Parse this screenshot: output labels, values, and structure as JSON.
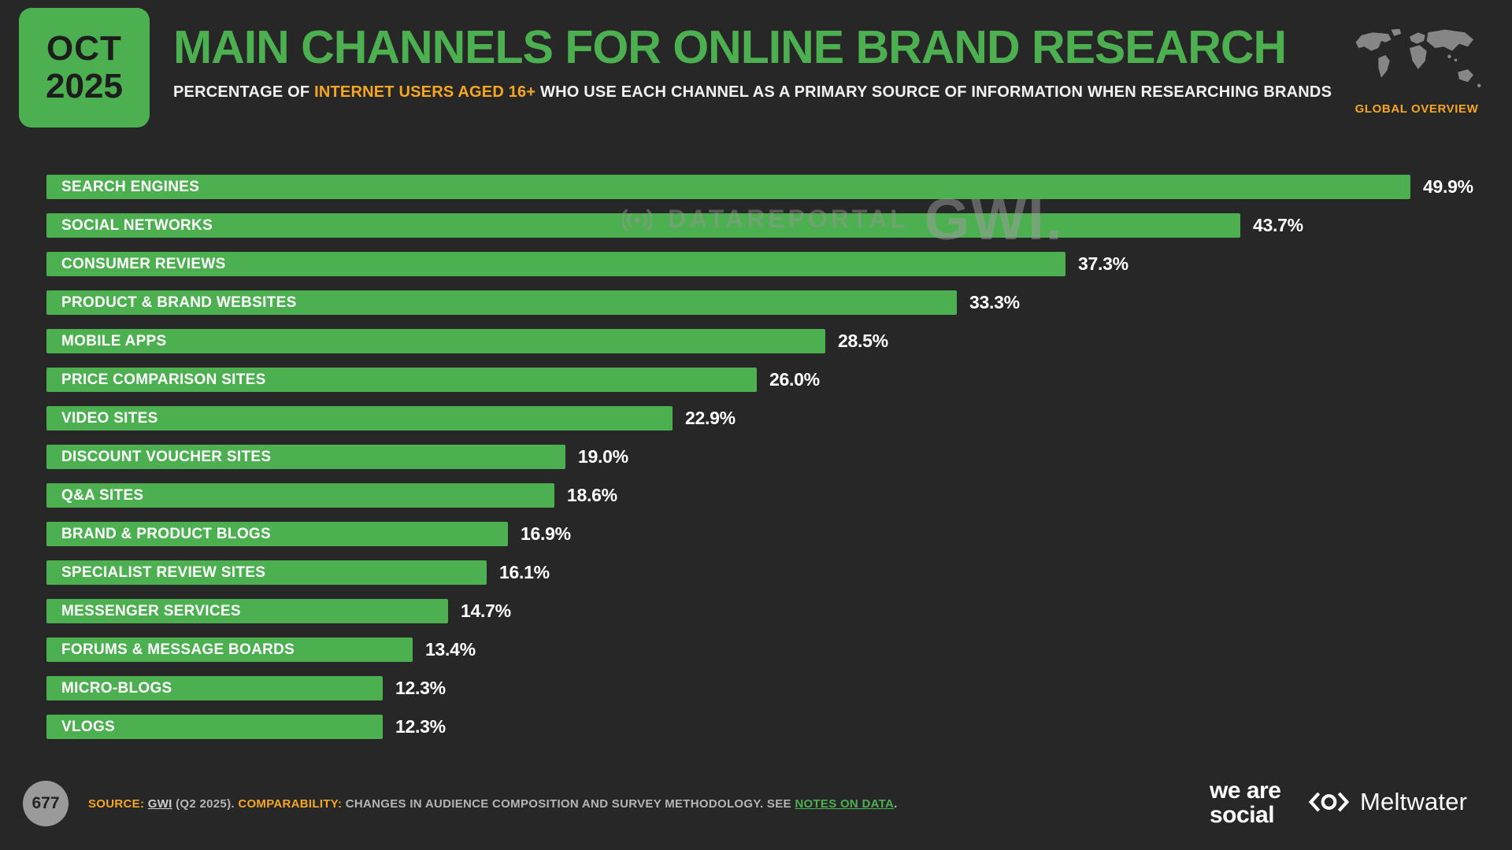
{
  "colors": {
    "green": "#4caf50",
    "orange": "#f5a623",
    "background": "#272727"
  },
  "header": {
    "badge_month": "OCT",
    "badge_year": "2025",
    "title": "MAIN CHANNELS FOR ONLINE BRAND RESEARCH",
    "subtitle_prefix": "PERCENTAGE OF ",
    "subtitle_highlight": "INTERNET USERS AGED 16+",
    "subtitle_suffix": " WHO USE EACH CHANNEL AS A PRIMARY SOURCE OF INFORMATION WHEN RESEARCHING BRANDS",
    "region_label": "GLOBAL OVERVIEW"
  },
  "watermark": {
    "brand1": "DATAREPORTAL",
    "brand2": "GWI."
  },
  "chart_data": {
    "type": "bar",
    "orientation": "horizontal",
    "title": "MAIN CHANNELS FOR ONLINE BRAND RESEARCH",
    "xlim": [
      0,
      50
    ],
    "bar_color": "#4caf50",
    "categories": [
      "SEARCH ENGINES",
      "SOCIAL NETWORKS",
      "CONSUMER REVIEWS",
      "PRODUCT & BRAND WEBSITES",
      "MOBILE APPS",
      "PRICE COMPARISON SITES",
      "VIDEO SITES",
      "DISCOUNT VOUCHER SITES",
      "Q&A SITES",
      "BRAND & PRODUCT BLOGS",
      "SPECIALIST REVIEW SITES",
      "MESSENGER SERVICES",
      "FORUMS & MESSAGE BOARDS",
      "MICRO-BLOGS",
      "VLOGS"
    ],
    "values": [
      49.9,
      43.7,
      37.3,
      33.3,
      28.5,
      26.0,
      22.9,
      19.0,
      18.6,
      16.9,
      16.1,
      14.7,
      13.4,
      12.3,
      12.3
    ],
    "value_labels": [
      "49.9%",
      "43.7%",
      "37.3%",
      "33.3%",
      "28.5%",
      "26.0%",
      "22.9%",
      "19.0%",
      "18.6%",
      "16.9%",
      "16.1%",
      "14.7%",
      "13.4%",
      "12.3%",
      "12.3%"
    ]
  },
  "footer": {
    "page_number": "677",
    "source_label": "SOURCE:",
    "source_link": "GWI",
    "source_tail": "(Q2 2025).",
    "comparability_label": "COMPARABILITY:",
    "comparability_text": "CHANGES IN AUDIENCE COMPOSITION AND SURVEY METHODOLOGY. SEE",
    "notes_link": "NOTES ON DATA",
    "notes_tail": ".",
    "wearesocial_line1": "we are",
    "wearesocial_line2": "social",
    "meltwater": "Meltwater"
  }
}
